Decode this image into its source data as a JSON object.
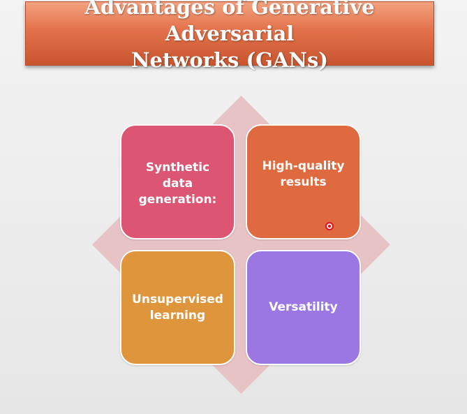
{
  "title": "Advantages of Generative Adversarial\nNetworks (GANs)",
  "quadrants": [
    {
      "label": "Synthetic\ndata\ngeneration:",
      "color": "#dc5673"
    },
    {
      "label": "High-quality\nresults",
      "color": "#df6a3f"
    },
    {
      "label": "Unsupervised\nlearning",
      "color": "#df953c"
    },
    {
      "label": "Versatility",
      "color": "#9a77e2"
    }
  ],
  "diamond_color": "#e7c3c6",
  "title_color": "#e2714a"
}
